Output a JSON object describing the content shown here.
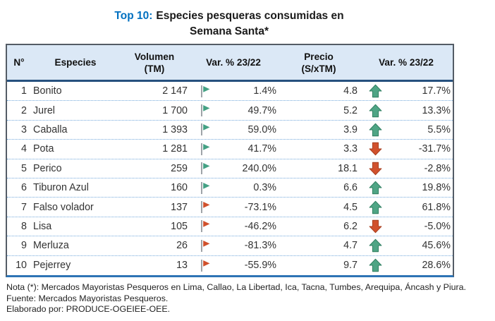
{
  "title": {
    "prefix": "Top 10:",
    "line1_rest": "Especies pesqueras consumidas en",
    "line2": "Semana Santa*"
  },
  "table": {
    "headers": {
      "num": "N°",
      "species": "Especies",
      "volume_l1": "Volumen",
      "volume_l2": "(TM)",
      "var_volume": "Var. % 23/22",
      "price_l1": "Precio",
      "price_l2": "(S/xTM)",
      "var_price": "Var. % 23/22"
    },
    "rows": [
      {
        "num": "1",
        "species": "Bonito",
        "volume": "2 147",
        "flag": "green",
        "var_volume": "1.4%",
        "price": "4.8",
        "arrow": "up",
        "var_price": "17.7%"
      },
      {
        "num": "2",
        "species": "Jurel",
        "volume": "1 700",
        "flag": "green",
        "var_volume": "49.7%",
        "price": "5.2",
        "arrow": "up",
        "var_price": "13.3%"
      },
      {
        "num": "3",
        "species": "Caballa",
        "volume": "1 393",
        "flag": "green",
        "var_volume": "59.0%",
        "price": "3.9",
        "arrow": "up",
        "var_price": "5.5%"
      },
      {
        "num": "4",
        "species": "Pota",
        "volume": "1 281",
        "flag": "green",
        "var_volume": "41.7%",
        "price": "3.3",
        "arrow": "down",
        "var_price": "-31.7%"
      },
      {
        "num": "5",
        "species": "Perico",
        "volume": "259",
        "flag": "green",
        "var_volume": "240.0%",
        "price": "18.1",
        "arrow": "down",
        "var_price": "-2.8%"
      },
      {
        "num": "6",
        "species": "Tiburon Azul",
        "volume": "160",
        "flag": "green",
        "var_volume": "0.3%",
        "price": "6.6",
        "arrow": "up",
        "var_price": "19.8%"
      },
      {
        "num": "7",
        "species": "Falso volador",
        "volume": "137",
        "flag": "red",
        "var_volume": "-73.1%",
        "price": "4.5",
        "arrow": "up",
        "var_price": "61.8%"
      },
      {
        "num": "8",
        "species": "Lisa",
        "volume": "105",
        "flag": "red",
        "var_volume": "-46.2%",
        "price": "6.2",
        "arrow": "down",
        "var_price": "-5.0%"
      },
      {
        "num": "9",
        "species": "Merluza",
        "volume": "26",
        "flag": "red",
        "var_volume": "-81.3%",
        "price": "4.7",
        "arrow": "up",
        "var_price": "45.6%"
      },
      {
        "num": "10",
        "species": "Pejerrey",
        "volume": "13",
        "flag": "red",
        "var_volume": "-55.9%",
        "price": "9.7",
        "arrow": "up",
        "var_price": "28.6%"
      }
    ]
  },
  "footer": {
    "note": "Nota (*): Mercados Mayoristas Pesqueros en Lima, Callao, La Libertad, Ica, Tacna, Tumbes, Arequipa, Áncash y Piura.",
    "source": "Fuente: Mercados Mayoristas Pesqueros.",
    "elaborated": "Elaborado por: PRODUCE-OGEIEE-OEE."
  },
  "colors": {
    "title_blue": "#0070C0",
    "header_bg": "#DBE8F6",
    "header_rule": "#26517E",
    "outer_border": "#545C66",
    "bottom_rule": "#2E74B5",
    "dotted_rule": "#74A9DC",
    "flag_green": "#44A184",
    "flag_red": "#D0502C",
    "flag_pole": "#9FA4A9",
    "arrow_up": "#4FA585",
    "arrow_up_edge": "#2E7D5F",
    "arrow_down": "#D1512D",
    "arrow_down_edge": "#A63D1D"
  },
  "chart_data": {
    "type": "table",
    "title": "Top 10: Especies pesqueras consumidas en Semana Santa*",
    "columns": [
      "N°",
      "Especies",
      "Volumen (TM)",
      "Var. % 23/22",
      "Precio (S/xTM)",
      "Var. % 23/22"
    ],
    "series": [
      {
        "name": "Volumen (TM)",
        "values": [
          2147,
          1700,
          1393,
          1281,
          259,
          160,
          137,
          105,
          26,
          13
        ]
      },
      {
        "name": "Var. % 23/22 (Volumen)",
        "values": [
          1.4,
          49.7,
          59.0,
          41.7,
          240.0,
          0.3,
          -73.1,
          -46.2,
          -81.3,
          -55.9
        ]
      },
      {
        "name": "Precio (S/xTM)",
        "values": [
          4.8,
          5.2,
          3.9,
          3.3,
          18.1,
          6.6,
          4.5,
          6.2,
          4.7,
          9.7
        ]
      },
      {
        "name": "Var. % 23/22 (Precio)",
        "values": [
          17.7,
          13.3,
          5.5,
          -31.7,
          -2.8,
          19.8,
          61.8,
          -5.0,
          45.6,
          28.6
        ]
      }
    ],
    "categories": [
      "Bonito",
      "Jurel",
      "Caballa",
      "Pota",
      "Perico",
      "Tiburon Azul",
      "Falso volador",
      "Lisa",
      "Merluza",
      "Pejerrey"
    ]
  }
}
